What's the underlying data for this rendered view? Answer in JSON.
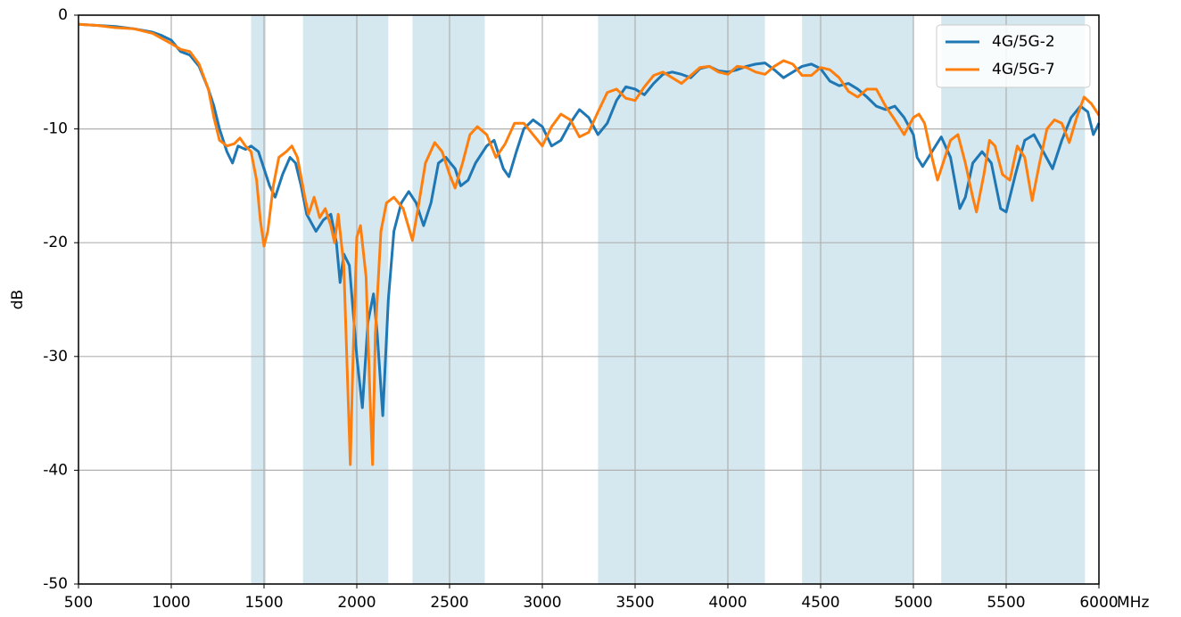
{
  "chart_data": {
    "type": "line",
    "x_label": "MHz",
    "y_label": "dB",
    "xlim": [
      500,
      6000
    ],
    "ylim": [
      -50,
      0
    ],
    "xticks": [
      500,
      1000,
      1500,
      2000,
      2500,
      3000,
      3500,
      4000,
      4500,
      5000,
      5500,
      6000
    ],
    "yticks": [
      -50,
      -40,
      -30,
      -20,
      -10,
      0
    ],
    "grid": true,
    "legend": "upper right",
    "band_color": "#d5e8f0",
    "bands": [
      [
        1430,
        1510
      ],
      [
        1710,
        2170
      ],
      [
        2300,
        2690
      ],
      [
        3300,
        4200
      ],
      [
        4400,
        5000
      ],
      [
        5150,
        5925
      ]
    ],
    "series": [
      {
        "name": "4G/5G-2",
        "color": "#1f77b4",
        "x": [
          500,
          600,
          700,
          800,
          900,
          950,
          1000,
          1050,
          1100,
          1150,
          1200,
          1230,
          1260,
          1300,
          1330,
          1360,
          1400,
          1430,
          1470,
          1500,
          1530,
          1560,
          1600,
          1640,
          1670,
          1700,
          1730,
          1780,
          1820,
          1860,
          1890,
          1910,
          1930,
          1960,
          2000,
          2030,
          2060,
          2090,
          2110,
          2140,
          2170,
          2200,
          2240,
          2280,
          2320,
          2360,
          2400,
          2440,
          2480,
          2530,
          2560,
          2600,
          2640,
          2700,
          2740,
          2790,
          2820,
          2860,
          2900,
          2950,
          3000,
          3050,
          3100,
          3150,
          3200,
          3250,
          3300,
          3350,
          3400,
          3450,
          3500,
          3550,
          3600,
          3650,
          3700,
          3750,
          3800,
          3850,
          3900,
          3950,
          4000,
          4050,
          4100,
          4150,
          4200,
          4250,
          4300,
          4350,
          4400,
          4450,
          4500,
          4550,
          4600,
          4650,
          4700,
          4750,
          4800,
          4850,
          4900,
          4950,
          5000,
          5020,
          5050,
          5100,
          5150,
          5200,
          5250,
          5280,
          5320,
          5370,
          5420,
          5470,
          5500,
          5550,
          5600,
          5650,
          5700,
          5750,
          5800,
          5850,
          5900,
          5940,
          5970,
          6000
        ],
        "values": [
          -0.8,
          -0.9,
          -1.0,
          -1.2,
          -1.5,
          -1.8,
          -2.2,
          -3.2,
          -3.5,
          -4.5,
          -6.5,
          -8,
          -10,
          -12,
          -13,
          -11.5,
          -11.8,
          -11.5,
          -12,
          -13.5,
          -15,
          -16,
          -14,
          -12.5,
          -13,
          -15,
          -17.5,
          -19,
          -18,
          -17.5,
          -20,
          -23.5,
          -21,
          -22,
          -30,
          -34.5,
          -27,
          -24.5,
          -28,
          -35.2,
          -25,
          -19,
          -16.5,
          -15.5,
          -16.5,
          -18.5,
          -16.5,
          -13,
          -12.5,
          -13.5,
          -15,
          -14.5,
          -13,
          -11.5,
          -11,
          -13.5,
          -14.2,
          -12,
          -10,
          -9.2,
          -9.8,
          -11.5,
          -11,
          -9.5,
          -8.3,
          -9,
          -10.5,
          -9.5,
          -7.5,
          -6.3,
          -6.5,
          -7,
          -6,
          -5.2,
          -5,
          -5.2,
          -5.5,
          -4.7,
          -4.5,
          -4.9,
          -5,
          -4.8,
          -4.5,
          -4.3,
          -4.2,
          -4.8,
          -5.5,
          -5,
          -4.5,
          -4.3,
          -4.7,
          -5.8,
          -6.2,
          -6,
          -6.5,
          -7.2,
          -8,
          -8.3,
          -8,
          -9,
          -10.5,
          -12.5,
          -13.3,
          -12,
          -10.7,
          -12.5,
          -17,
          -16,
          -13,
          -12,
          -13,
          -17,
          -17.3,
          -14,
          -11,
          -10.5,
          -12,
          -13.5,
          -11,
          -9,
          -8,
          -8.5,
          -10.5,
          -9.5
        ]
      },
      {
        "name": "4G/5G-7",
        "color": "#ff7f0e",
        "x": [
          500,
          600,
          700,
          800,
          900,
          1000,
          1050,
          1100,
          1150,
          1200,
          1230,
          1260,
          1300,
          1340,
          1370,
          1400,
          1430,
          1460,
          1480,
          1500,
          1520,
          1550,
          1580,
          1620,
          1650,
          1680,
          1720,
          1740,
          1770,
          1800,
          1830,
          1860,
          1880,
          1900,
          1930,
          1950,
          1965,
          1980,
          2000,
          2020,
          2050,
          2070,
          2085,
          2100,
          2130,
          2160,
          2200,
          2250,
          2300,
          2330,
          2370,
          2420,
          2460,
          2500,
          2530,
          2570,
          2610,
          2650,
          2700,
          2750,
          2800,
          2850,
          2900,
          2950,
          3000,
          3050,
          3100,
          3150,
          3200,
          3250,
          3300,
          3350,
          3400,
          3450,
          3500,
          3550,
          3600,
          3650,
          3700,
          3750,
          3800,
          3850,
          3900,
          3950,
          4000,
          4050,
          4100,
          4150,
          4200,
          4250,
          4300,
          4350,
          4400,
          4450,
          4500,
          4550,
          4600,
          4650,
          4700,
          4750,
          4800,
          4850,
          4900,
          4950,
          5000,
          5030,
          5060,
          5100,
          5130,
          5160,
          5200,
          5240,
          5280,
          5320,
          5340,
          5380,
          5410,
          5440,
          5480,
          5520,
          5560,
          5600,
          5640,
          5680,
          5720,
          5760,
          5800,
          5840,
          5880,
          5920,
          5960,
          6000
        ],
        "values": [
          -0.8,
          -0.9,
          -1.1,
          -1.2,
          -1.6,
          -2.5,
          -3,
          -3.2,
          -4.3,
          -6.5,
          -9,
          -11,
          -11.5,
          -11.3,
          -10.8,
          -11.5,
          -12,
          -14.5,
          -18,
          -20.3,
          -19,
          -15,
          -12.5,
          -12,
          -11.5,
          -12.5,
          -16,
          -17.5,
          -16,
          -17.8,
          -17,
          -18.5,
          -20,
          -17.5,
          -22,
          -32,
          -39.5,
          -30,
          -19.5,
          -18.5,
          -23,
          -33,
          -39.5,
          -28,
          -19,
          -16.5,
          -16,
          -17,
          -19.8,
          -17,
          -13,
          -11.2,
          -12,
          -14,
          -15.2,
          -13,
          -10.5,
          -9.8,
          -10.5,
          -12.5,
          -11.3,
          -9.5,
          -9.5,
          -10.5,
          -11.5,
          -9.8,
          -8.7,
          -9.2,
          -10.7,
          -10.3,
          -8.5,
          -6.8,
          -6.5,
          -7.3,
          -7.5,
          -6.3,
          -5.3,
          -5,
          -5.5,
          -6,
          -5.3,
          -4.6,
          -4.5,
          -5,
          -5.2,
          -4.5,
          -4.6,
          -5,
          -5.2,
          -4.5,
          -4,
          -4.3,
          -5.3,
          -5.3,
          -4.6,
          -4.8,
          -5.5,
          -6.7,
          -7.2,
          -6.5,
          -6.5,
          -8,
          -9.2,
          -10.5,
          -9,
          -8.7,
          -9.5,
          -12.5,
          -14.5,
          -13,
          -11,
          -10.5,
          -13,
          -16,
          -17.3,
          -14,
          -11,
          -11.5,
          -14,
          -14.5,
          -11.5,
          -12.5,
          -16.3,
          -13,
          -10,
          -9.2,
          -9.5,
          -11.2,
          -9,
          -7.2,
          -7.8,
          -8.8
        ]
      }
    ]
  }
}
